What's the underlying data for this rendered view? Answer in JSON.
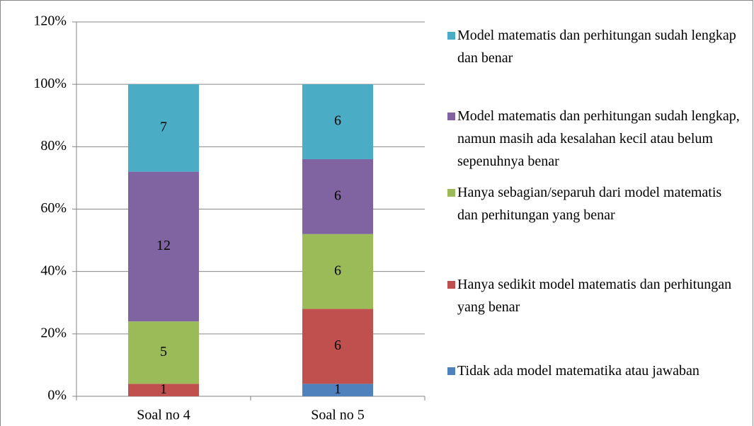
{
  "chart_data": {
    "type": "bar",
    "stacking": "percent",
    "categories": [
      "Soal no 4",
      "Soal no 5"
    ],
    "series": [
      {
        "name": "Tidak ada model matematika atau jawaban",
        "color": "#4f81bd",
        "values": [
          0,
          1
        ]
      },
      {
        "name": "Hanya sedikit model matematis dan perhitungan yang benar",
        "color": "#c0504d",
        "values": [
          1,
          6
        ]
      },
      {
        "name": "Hanya sebagian/separuh dari model matematis dan perhitungan yang benar",
        "color": "#9bbb59",
        "values": [
          5,
          6
        ]
      },
      {
        "name": "Model matematis dan perhitungan sudah lengkap, namun masih ada kesalahan kecil atau belum sepenuhnya benar",
        "color": "#8064a2",
        "values": [
          12,
          6
        ]
      },
      {
        "name": "Model matematis dan perhitungan sudah lengkap dan benar",
        "color": "#4bacc6",
        "values": [
          7,
          6
        ]
      }
    ],
    "ylim": [
      0,
      120
    ],
    "yticks": [
      {
        "value": 0,
        "label": "0%"
      },
      {
        "value": 20,
        "label": "20%"
      },
      {
        "value": 40,
        "label": "40%"
      },
      {
        "value": 60,
        "label": "60%"
      },
      {
        "value": 80,
        "label": "80%"
      },
      {
        "value": 100,
        "label": "100%"
      },
      {
        "value": 120,
        "label": "120%"
      }
    ],
    "grid": true,
    "legend": "right"
  }
}
